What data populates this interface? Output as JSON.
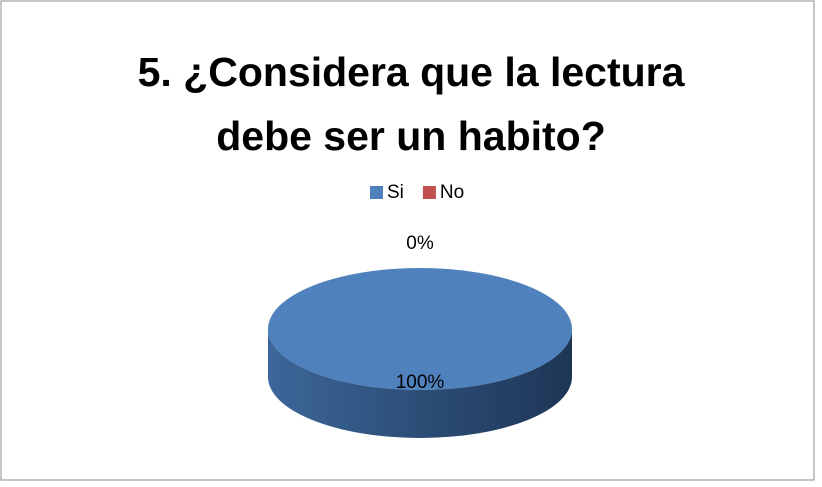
{
  "chart_data": {
    "type": "pie",
    "title": "5. ¿Considera que la lectura debe ser un habito?",
    "categories": [
      "Si",
      "No"
    ],
    "values": [
      100,
      0
    ],
    "value_labels": [
      "100%",
      "0%"
    ],
    "colors": [
      "#4f81bd",
      "#c0504d"
    ],
    "legend": "top"
  }
}
